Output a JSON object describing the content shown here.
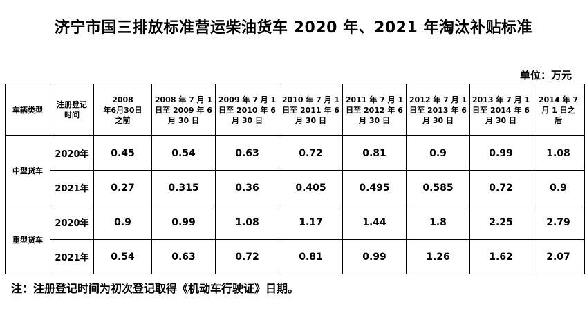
{
  "title": "济宁市国三排放标准营运柴油货车 2020 年、2021 年淘汰补贴标准",
  "unit": "单位：万元",
  "table": {
    "header": {
      "vehicle_type": "车辆类型",
      "reg_time": [
        "注册登记",
        "时间"
      ],
      "periods": [
        [
          "2008",
          "年6月30日",
          "之前"
        ],
        [
          "2008 年 7 月 1",
          "日至 2009 年 6",
          "月 30 日"
        ],
        [
          "2009 年 7 月 1",
          "日至 2010 年 6",
          "月 30 日"
        ],
        [
          "2010 年 7 月 1",
          "日至 2011 年 6",
          "月 30 日"
        ],
        [
          "2011 年 7 月 1",
          "日至 2012 年 6",
          "月 30 日"
        ],
        [
          "2012 年 7 月 1",
          "日至 2013 年 6",
          "月 30 日"
        ],
        [
          "2013 年 7 月 1",
          "日至 2014 年 6",
          "月 30 日"
        ],
        [
          "2014 年 7",
          "月 1 日之",
          "后"
        ]
      ]
    },
    "groups": [
      {
        "type": "中型货车",
        "rows": [
          {
            "year": "2020年",
            "values": [
              "0.45",
              "0.54",
              "0.63",
              "0.72",
              "0.81",
              "0.9",
              "0.99",
              "1.08"
            ]
          },
          {
            "year": "2021年",
            "values": [
              "0.27",
              "0.315",
              "0.36",
              "0.405",
              "0.495",
              "0.585",
              "0.72",
              "0.9"
            ]
          }
        ]
      },
      {
        "type": "重型货车",
        "rows": [
          {
            "year": "2020年",
            "values": [
              "0.9",
              "0.99",
              "1.08",
              "1.17",
              "1.44",
              "1.8",
              "2.25",
              "2.79"
            ]
          },
          {
            "year": "2021年",
            "values": [
              "0.54",
              "0.63",
              "0.72",
              "0.81",
              "0.99",
              "1.26",
              "1.62",
              "2.07"
            ]
          }
        ]
      }
    ]
  },
  "note": "注：注册登记时间为初次登记取得《机动车行驶证》日期。"
}
